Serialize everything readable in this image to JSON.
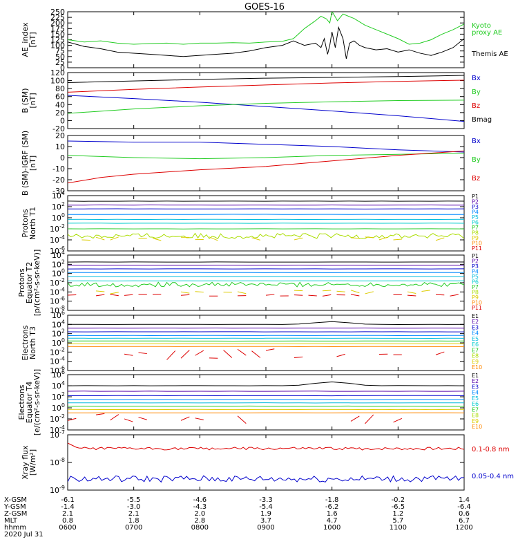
{
  "title": "GOES-16",
  "colors": {
    "black": "#000000",
    "green": "#22cc22",
    "red": "#dd0000",
    "blue": "#0000cc"
  },
  "chart_data": [
    {
      "type": "line",
      "name": "AE index",
      "ylabel": [
        "AE_index",
        "[nT]"
      ],
      "ylim": [
        0,
        250
      ],
      "yticks": [
        "0",
        "25",
        "50",
        "75",
        "100",
        "125",
        "150",
        "175",
        "200",
        "225",
        "250"
      ],
      "legend": [
        "Kyoto",
        "proxy AE",
        "Themis AE"
      ],
      "series": [
        {
          "name": "Kyoto proxy AE",
          "color": "green",
          "x": [
            600,
            615,
            630,
            645,
            700,
            715,
            730,
            745,
            800,
            815,
            830,
            845,
            900,
            915,
            925,
            935,
            945,
            950,
            955,
            958,
            1000,
            1005,
            1010,
            1020,
            1030,
            1040,
            1050,
            1100,
            1110,
            1120,
            1130,
            1140,
            1150,
            1200
          ],
          "y": [
            125,
            115,
            120,
            110,
            105,
            108,
            110,
            105,
            110,
            110,
            112,
            110,
            115,
            118,
            130,
            175,
            210,
            230,
            218,
            200,
            252,
            210,
            240,
            220,
            190,
            170,
            150,
            130,
            105,
            110,
            125,
            150,
            170,
            195
          ]
        },
        {
          "name": "Themis AE",
          "color": "black",
          "x": [
            600,
            615,
            630,
            645,
            700,
            715,
            730,
            745,
            800,
            815,
            830,
            845,
            900,
            915,
            925,
            935,
            945,
            950,
            953,
            956,
            958,
            1000,
            1003,
            1006,
            1010,
            1013,
            1016,
            1020,
            1025,
            1030,
            1040,
            1050,
            1100,
            1110,
            1120,
            1130,
            1140,
            1150,
            1200
          ],
          "y": [
            115,
            95,
            85,
            70,
            65,
            60,
            55,
            50,
            55,
            60,
            65,
            75,
            90,
            100,
            120,
            100,
            110,
            90,
            130,
            60,
            100,
            160,
            90,
            180,
            130,
            40,
            110,
            120,
            100,
            90,
            80,
            85,
            70,
            80,
            65,
            55,
            70,
            90,
            130
          ]
        }
      ]
    },
    {
      "type": "line",
      "name": "B (SM)",
      "ylabel": [
        "B (SM)",
        "[nT]"
      ],
      "ylim": [
        -20,
        120
      ],
      "yticks": [
        "-20",
        "0",
        "20",
        "40",
        "60",
        "80",
        "100",
        "120"
      ],
      "legend": [
        "Bx",
        "By",
        "Bz",
        "Bmag"
      ],
      "series": [
        {
          "name": "Bx",
          "color": "blue",
          "x": [
            600,
            700,
            800,
            900,
            1000,
            1100,
            1200
          ],
          "y": [
            63,
            55,
            46,
            35,
            24,
            12,
            -2
          ]
        },
        {
          "name": "By",
          "color": "green",
          "x": [
            600,
            700,
            800,
            900,
            1000,
            1100,
            1200
          ],
          "y": [
            18,
            29,
            37,
            43,
            47,
            50,
            51
          ]
        },
        {
          "name": "Bz",
          "color": "red",
          "x": [
            600,
            700,
            800,
            900,
            1000,
            1100,
            1200
          ],
          "y": [
            71,
            78,
            84,
            89,
            94,
            98,
            101
          ]
        },
        {
          "name": "Bmag",
          "color": "black",
          "x": [
            600,
            700,
            800,
            900,
            1000,
            1100,
            1200
          ],
          "y": [
            95,
            99,
            103,
            106,
            108,
            110,
            113
          ]
        }
      ]
    },
    {
      "type": "line",
      "name": "B (SM)-IGRF (SM)",
      "ylabel": [
        "B (SM)-IGRF (SM)",
        "[nT]"
      ],
      "ylim": [
        -30,
        20
      ],
      "yticks": [
        "-30",
        "-20",
        "-10",
        "0",
        "10",
        "20"
      ],
      "legend": [
        "Bx",
        "By",
        "Bz"
      ],
      "series": [
        {
          "name": "Bx",
          "color": "blue",
          "x": [
            600,
            700,
            800,
            900,
            1000,
            1100,
            1200
          ],
          "y": [
            15,
            14,
            14,
            12,
            10,
            7,
            5
          ]
        },
        {
          "name": "By",
          "color": "green",
          "x": [
            600,
            700,
            800,
            900,
            1000,
            1100,
            1200
          ],
          "y": [
            2,
            0,
            -1,
            0,
            2,
            3,
            4
          ]
        },
        {
          "name": "Bz",
          "color": "red",
          "x": [
            600,
            630,
            700,
            800,
            900,
            1000,
            1100,
            1200
          ],
          "y": [
            -23,
            -18,
            -15,
            -11,
            -8,
            -3,
            2,
            6
          ]
        }
      ]
    },
    {
      "type": "line",
      "name": "Protons North T1",
      "ylabel": [
        "Protons",
        "North T1"
      ],
      "ylog": [
        -6,
        4
      ],
      "yticks": [
        -6,
        -4,
        -2,
        0,
        2,
        4
      ],
      "legend": [
        "P1",
        "P2",
        "P3",
        "P4",
        "P5",
        "P6",
        "P7",
        "P8",
        "P9",
        "P10",
        "P11"
      ],
      "series": [
        {
          "name": "P1",
          "color": "#000000",
          "logy": 3.0
        },
        {
          "name": "P2",
          "color": "#5500aa",
          "logy": 2.3
        },
        {
          "name": "P3",
          "color": "#0000cc",
          "logy": 1.6
        },
        {
          "name": "P4",
          "color": "#0088ff",
          "logy": 0.6
        },
        {
          "name": "P5",
          "color": "#00bbdd",
          "logy": -0.3
        },
        {
          "name": "P6",
          "color": "#00cccc",
          "logy": -1.0
        },
        {
          "name": "P7",
          "color": "#22cc22",
          "logy": -2.0
        },
        {
          "name": "P8",
          "color": "#aadd00",
          "logy": -3.3,
          "noise": 0.5
        },
        {
          "name": "P9",
          "color": "#ddcc00",
          "logy": -3.8,
          "noise": 0.4,
          "sparse": true
        }
      ]
    },
    {
      "type": "line",
      "name": "Protons Equator T2",
      "ylabel": [
        "Protons",
        "Equator T2",
        "[p/(cm²-s-sr-keV)]"
      ],
      "ylog": [
        -8,
        4
      ],
      "yticks": [
        -8,
        -6,
        -4,
        -2,
        0,
        2,
        4
      ],
      "legend": [
        "P1",
        "P2",
        "P3",
        "P4",
        "P5",
        "P6",
        "P7",
        "P8",
        "P9",
        "P10",
        "P11"
      ],
      "series": [
        {
          "name": "P1",
          "color": "#000000",
          "logy": 2.5
        },
        {
          "name": "P2",
          "color": "#5500aa",
          "logy": 1.8
        },
        {
          "name": "P3",
          "color": "#0000cc",
          "logy": 1.0
        },
        {
          "name": "P4",
          "color": "#0088ff",
          "logy": 0.2
        },
        {
          "name": "P5",
          "color": "#00bbdd",
          "logy": -0.7
        },
        {
          "name": "P6",
          "color": "#00cccc",
          "logy": -1.6
        },
        {
          "name": "P7",
          "color": "#22cc22",
          "logy": -2.4,
          "noise": 0.5
        },
        {
          "name": "P8",
          "color": "#ddcc00",
          "logy": -4.0,
          "noise": 0.4,
          "sparse": true
        },
        {
          "name": "P9",
          "color": "#dd0000",
          "logy": -4.7,
          "noise": 0.2,
          "sparse": true
        }
      ]
    },
    {
      "type": "line",
      "name": "Electrons North T3",
      "ylabel": [
        "Electrons",
        "North T3"
      ],
      "ylog": [
        -6,
        6
      ],
      "yticks": [
        -6,
        -4,
        -2,
        0,
        2,
        4,
        6
      ],
      "legend": [
        "E1",
        "E2",
        "E3",
        "E4",
        "E5",
        "E6",
        "E7",
        "E8",
        "E9",
        "E10"
      ],
      "series": [
        {
          "name": "E1",
          "color": "#000000",
          "logy": 4.0,
          "bump": [
            1000,
            0.6
          ]
        },
        {
          "name": "E2",
          "color": "#5500aa",
          "logy": 3.2
        },
        {
          "name": "E3",
          "color": "#0000cc",
          "logy": 2.4
        },
        {
          "name": "E4",
          "color": "#0088ff",
          "logy": 1.6
        },
        {
          "name": "E5",
          "color": "#00bbdd",
          "logy": 1.0
        },
        {
          "name": "E6",
          "color": "#22cc22",
          "logy": 0.4
        },
        {
          "name": "E7",
          "color": "#ddcc00",
          "logy": -0.2
        },
        {
          "name": "E8",
          "color": "#ff8800",
          "logy": -0.8
        },
        {
          "name": "E9",
          "color": "#dd0000",
          "logy": -2.5,
          "noise": 1.2,
          "sparse": true
        }
      ]
    },
    {
      "type": "line",
      "name": "Electrons Equator T4",
      "ylabel": [
        "Electrons",
        "Equator T4",
        "[e/(cm²-s-sr-keV)]"
      ],
      "ylog": [
        -4,
        6
      ],
      "yticks": [
        -4,
        -2,
        0,
        2,
        4,
        6
      ],
      "legend": [
        "E1",
        "E2",
        "E3",
        "E4",
        "E5",
        "E6",
        "E7",
        "E8",
        "E9",
        "E10"
      ],
      "series": [
        {
          "name": "E1",
          "color": "#000000",
          "logy": 4.0,
          "bump": [
            1000,
            0.7
          ]
        },
        {
          "name": "E2",
          "color": "#5500aa",
          "logy": 3.0
        },
        {
          "name": "E3",
          "color": "#0000cc",
          "logy": 2.2
        },
        {
          "name": "E4",
          "color": "#0088ff",
          "logy": 1.5
        },
        {
          "name": "E5",
          "color": "#00bbdd",
          "logy": 0.9
        },
        {
          "name": "E6",
          "color": "#22cc22",
          "logy": 0.3
        },
        {
          "name": "E7",
          "color": "#ddcc00",
          "logy": -0.3
        },
        {
          "name": "E8",
          "color": "#ff8800",
          "logy": -0.9
        },
        {
          "name": "E9",
          "color": "#dd0000",
          "logy": -2.0,
          "noise": 1.0,
          "sparse": true
        }
      ]
    },
    {
      "type": "line",
      "name": "Xray flux",
      "ylabel": [
        "Xray flux",
        "[W/m²]"
      ],
      "ylog": [
        -9,
        -7
      ],
      "yticks": [
        -9,
        -8,
        -7
      ],
      "legend": [
        "0.1-0.8 nm",
        "0.05-0.4 nm"
      ],
      "series": [
        {
          "name": "0.1-0.8 nm",
          "color": "red",
          "logy": -7.5,
          "noise": 0.05,
          "start": -7.3
        },
        {
          "name": "0.05-0.4 nm",
          "color": "blue",
          "logy": -8.6,
          "noise": 0.12
        }
      ]
    }
  ],
  "footer": {
    "row_labels": [
      "X-GSM",
      "Y-GSM",
      "Z-GSM",
      "MLT",
      "hhmm"
    ],
    "columns": [
      {
        "x": 600,
        "values": [
          "-6.1",
          "-1.4",
          "2.1",
          "0.8",
          "0600"
        ]
      },
      {
        "x": 700,
        "values": [
          "-5.5",
          "-3.0",
          "2.1",
          "1.8",
          "0700"
        ]
      },
      {
        "x": 800,
        "values": [
          "-4.6",
          "-4.3",
          "2.0",
          "2.8",
          "0800"
        ]
      },
      {
        "x": 900,
        "values": [
          "-3.3",
          "-5.4",
          "1.9",
          "3.7",
          "0900"
        ]
      },
      {
        "x": 1000,
        "values": [
          "-1.8",
          "-6.2",
          "1.6",
          "4.7",
          "1000"
        ]
      },
      {
        "x": 1100,
        "values": [
          "-0.2",
          "-6.5",
          "1.2",
          "5.7",
          "1100"
        ]
      },
      {
        "x": 1200,
        "values": [
          "1.4",
          "-6.4",
          "0.6",
          "6.7",
          "1200"
        ]
      }
    ],
    "date": "2020 Jul 31"
  }
}
